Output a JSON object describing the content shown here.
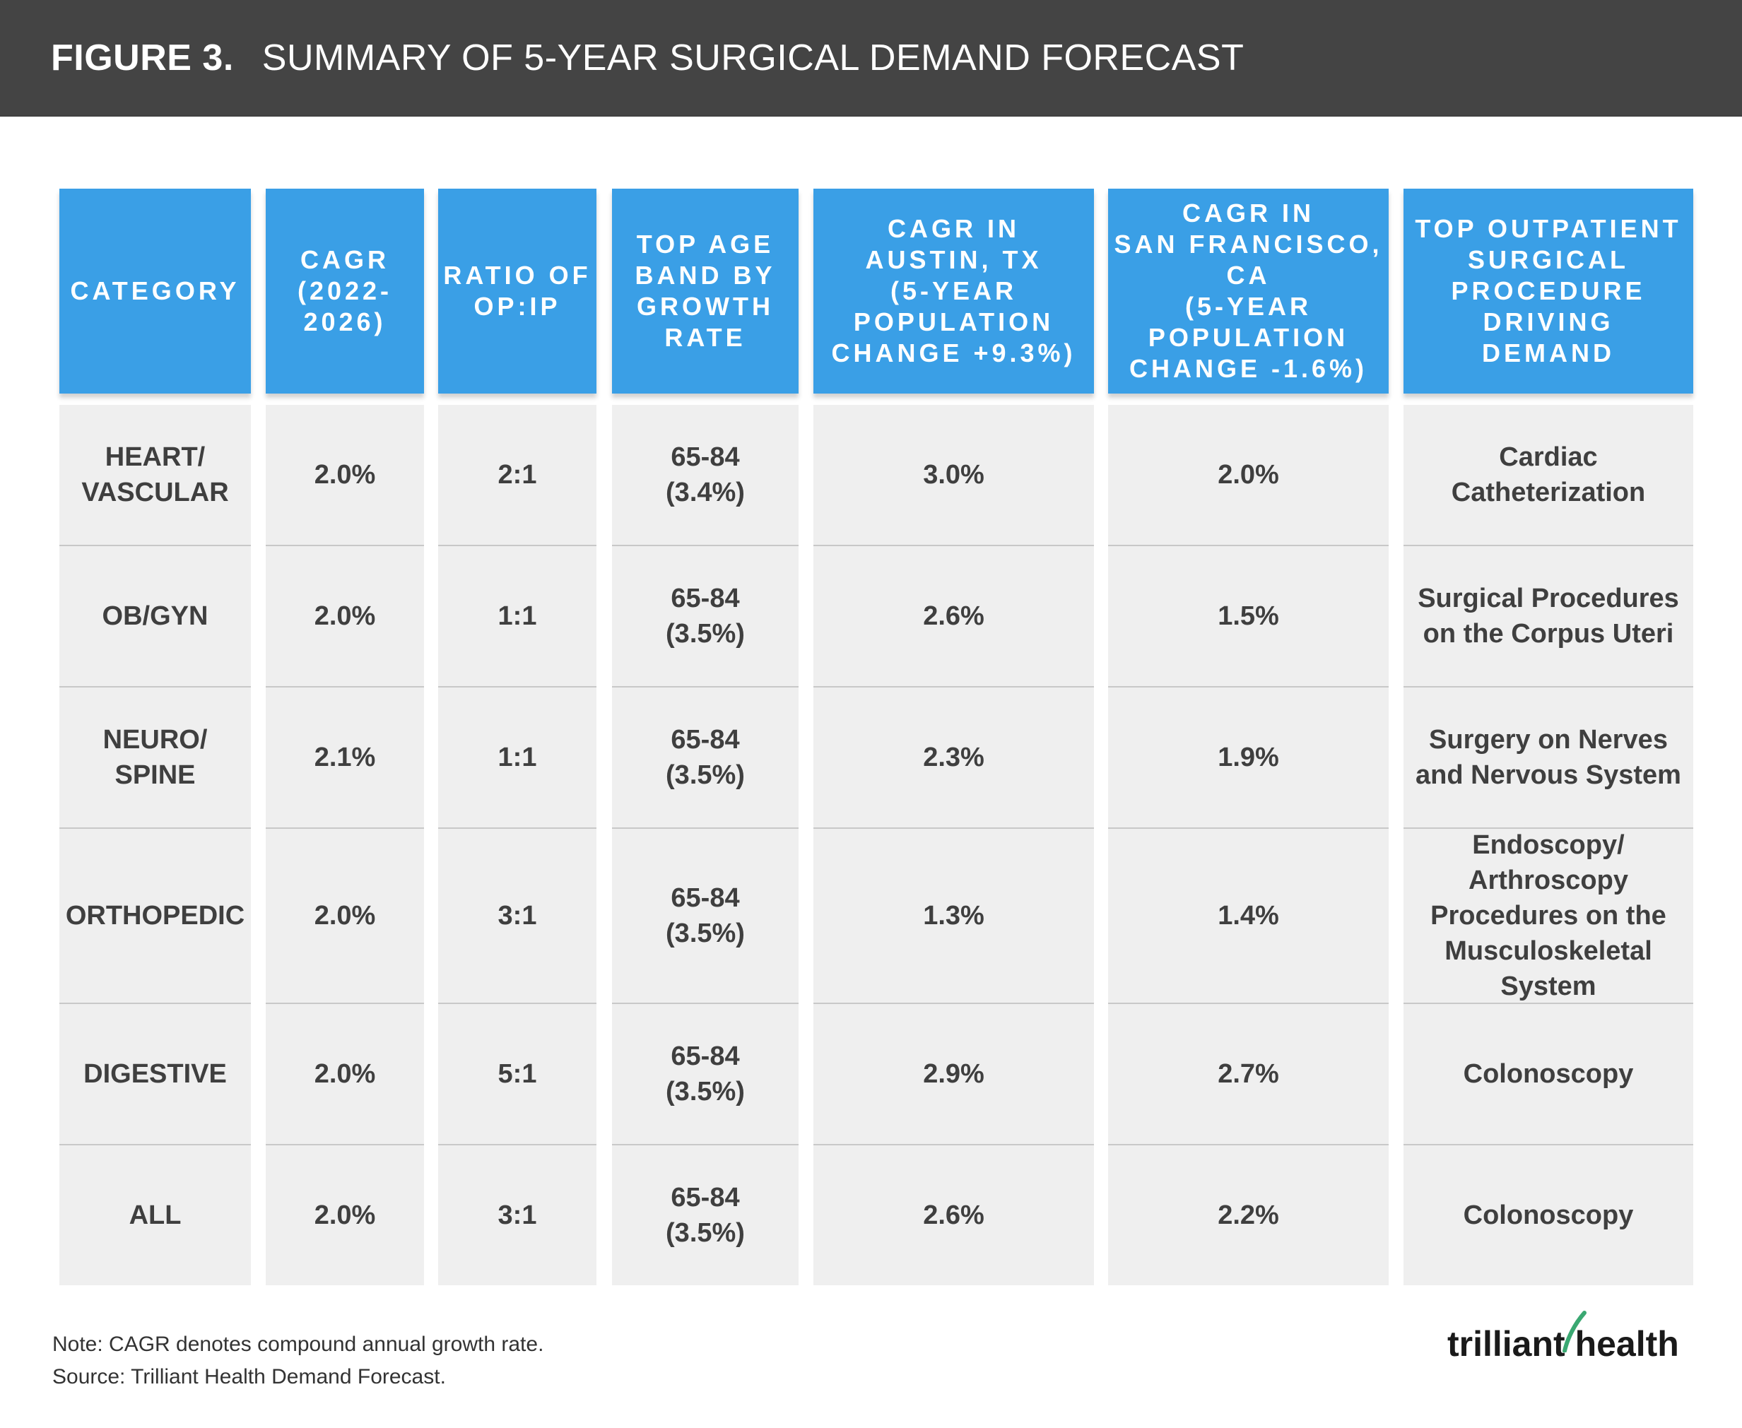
{
  "header": {
    "figure_label": "FIGURE 3.",
    "figure_title": "SUMMARY OF 5-YEAR SURGICAL DEMAND FORECAST"
  },
  "table": {
    "columns": [
      "CATEGORY",
      "CAGR\n(2022-\n2026)",
      "RATIO OF\nOP:IP",
      "TOP AGE\nBAND BY\nGROWTH\nRATE",
      "CAGR IN\nAUSTIN, TX\n(5-YEAR\nPOPULATION\nCHANGE +9.3%)",
      "CAGR IN\nSAN FRANCISCO,\nCA\n(5-YEAR\nPOPULATION\nCHANGE -1.6%)",
      "TOP OUTPATIENT\nSURGICAL\nPROCEDURE\nDRIVING\nDEMAND"
    ],
    "rows": [
      [
        "HEART/\nVASCULAR",
        "2.0%",
        "2:1",
        "65-84\n(3.4%)",
        "3.0%",
        "2.0%",
        "Cardiac\nCatheterization"
      ],
      [
        "OB/GYN",
        "2.0%",
        "1:1",
        "65-84\n(3.5%)",
        "2.6%",
        "1.5%",
        "Surgical Procedures\non the Corpus Uteri"
      ],
      [
        "NEURO/\nSPINE",
        "2.1%",
        "1:1",
        "65-84\n(3.5%)",
        "2.3%",
        "1.9%",
        "Surgery on Nerves\nand Nervous System"
      ],
      [
        "ORTHOPEDIC",
        "2.0%",
        "3:1",
        "65-84\n(3.5%)",
        "1.3%",
        "1.4%",
        "Endoscopy/\nArthroscopy\nProcedures on the\nMusculoskeletal\nSystem"
      ],
      [
        "DIGESTIVE",
        "2.0%",
        "5:1",
        "65-84\n(3.5%)",
        "2.9%",
        "2.7%",
        "Colonoscopy"
      ],
      [
        "ALL",
        "2.0%",
        "3:1",
        "65-84\n(3.5%)",
        "2.6%",
        "2.2%",
        "Colonoscopy"
      ]
    ]
  },
  "footer": {
    "note": "Note: CAGR denotes compound annual growth rate.\nSource: Trilliant Health Demand Forecast.",
    "logo_text": "trilliant health",
    "logo_accent_color": "#3aa872"
  }
}
